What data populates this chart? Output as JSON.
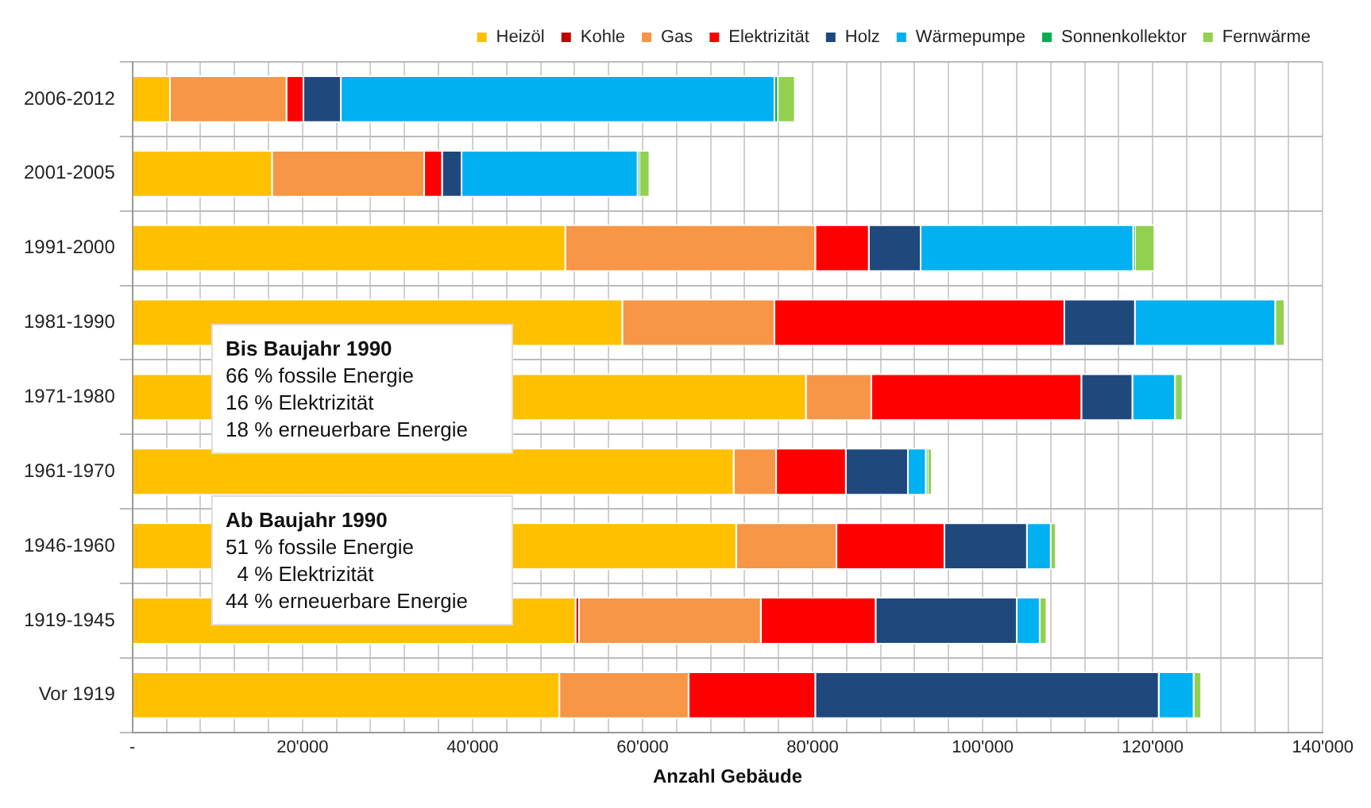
{
  "chart_data": {
    "type": "bar",
    "orientation": "horizontal",
    "stacked": true,
    "xlabel": "Anzahl Gebäude",
    "categories": [
      "2006-2012",
      "2001-2005",
      "1991-2000",
      "1981-1990",
      "1971-1980",
      "1961-1970",
      "1946-1960",
      "1919-1945",
      "Vor 1919"
    ],
    "series": [
      {
        "name": "Heizöl",
        "color": "#ffc000",
        "values": [
          4500,
          16500,
          51000,
          57700,
          79300,
          70800,
          71100,
          52200,
          50300
        ]
      },
      {
        "name": "Kohle",
        "color": "#c00000",
        "values": [
          0,
          0,
          0,
          0,
          0,
          0,
          0,
          400,
          0
        ]
      },
      {
        "name": "Gas",
        "color": "#f79646",
        "values": [
          13700,
          17900,
          29400,
          17900,
          7700,
          5000,
          11800,
          21400,
          15200
        ]
      },
      {
        "name": "Elektrizität",
        "color": "#ff0000",
        "values": [
          2000,
          2100,
          6300,
          34100,
          24700,
          8200,
          12700,
          13500,
          14900
        ]
      },
      {
        "name": "Holz",
        "color": "#1f497d",
        "values": [
          4400,
          2300,
          6100,
          8300,
          6000,
          7300,
          9700,
          16600,
          40400
        ]
      },
      {
        "name": "Wärmepumpe",
        "color": "#00b0f0",
        "values": [
          51000,
          20700,
          25000,
          16500,
          5000,
          2100,
          2800,
          2700,
          4100
        ]
      },
      {
        "name": "Sonnenkollektor",
        "color": "#00b050",
        "values": [
          400,
          200,
          200,
          null,
          100,
          200,
          null,
          null,
          null
        ]
      },
      {
        "name": "Fernwärme",
        "color": "#92d050",
        "values": [
          2000,
          1200,
          2300,
          1100,
          800,
          500,
          600,
          800,
          900
        ]
      }
    ],
    "xlim": [
      0,
      140000
    ],
    "xticks": [
      {
        "value": 0,
        "label": "-"
      },
      {
        "value": 4000,
        "label": null
      },
      {
        "value": 8000,
        "label": null
      },
      {
        "value": 12000,
        "label": null
      },
      {
        "value": 16000,
        "label": null
      },
      {
        "value": 20000,
        "label": "20'000"
      },
      {
        "value": 24000,
        "label": null
      },
      {
        "value": 28000,
        "label": null
      },
      {
        "value": 32000,
        "label": null
      },
      {
        "value": 36000,
        "label": null
      },
      {
        "value": 40000,
        "label": "40'000"
      },
      {
        "value": 44000,
        "label": null
      },
      {
        "value": 48000,
        "label": null
      },
      {
        "value": 52000,
        "label": null
      },
      {
        "value": 56000,
        "label": null
      },
      {
        "value": 60000,
        "label": "60'000"
      },
      {
        "value": 64000,
        "label": null
      },
      {
        "value": 68000,
        "label": null
      },
      {
        "value": 72000,
        "label": null
      },
      {
        "value": 76000,
        "label": null
      },
      {
        "value": 80000,
        "label": "80'000"
      },
      {
        "value": 84000,
        "label": null
      },
      {
        "value": 88000,
        "label": null
      },
      {
        "value": 92000,
        "label": null
      },
      {
        "value": 96000,
        "label": null
      },
      {
        "value": 100000,
        "label": "100'000"
      },
      {
        "value": 104000,
        "label": null
      },
      {
        "value": 108000,
        "label": null
      },
      {
        "value": 112000,
        "label": null
      },
      {
        "value": 116000,
        "label": null
      },
      {
        "value": 120000,
        "label": "120'000"
      },
      {
        "value": 124000,
        "label": null
      },
      {
        "value": 128000,
        "label": null
      },
      {
        "value": 132000,
        "label": null
      },
      {
        "value": 136000,
        "label": null
      },
      {
        "value": 140000,
        "label": "140'000"
      }
    ],
    "grid": true,
    "legend": "top right",
    "annotations": [
      "Bis Baujahr 1990\n66 % fossile Energie\n16 % Elektrizität\n18 % erneuerbare Energie",
      "Ab Baujahr 1990\n51 % fossile Energie\n  4 % Elektrizität\n44 % erneuerbare Energie"
    ]
  }
}
